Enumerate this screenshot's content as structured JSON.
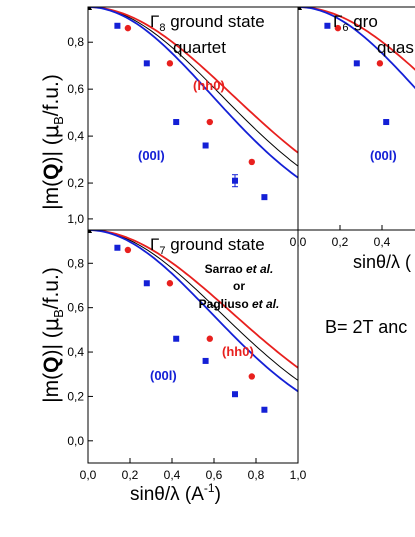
{
  "y_axis_label": {
    "pre": "|m(",
    "bold": "Q",
    "mid": ")|  (",
    "mu": "μ",
    "sub": "B",
    "post": "/f.u.)"
  },
  "x_axis_label": {
    "main": "sinθ/λ  (A",
    "sup": "-1",
    "close": ")"
  },
  "note": "B= 2T anc",
  "colors": {
    "red": "#e8201e",
    "blue": "#1420d6",
    "black": "#000000",
    "axis": "#000000"
  },
  "chart_data": [
    {
      "type": "scatter",
      "panel": "top-left",
      "title": {
        "gamma": "Γ",
        "sub": "8",
        "text": " ground state",
        "line2": "quartet"
      },
      "xlim": [
        0,
        1.0
      ],
      "ylim": [
        0,
        0.95
      ],
      "yticks": [
        "0,2",
        "0,4",
        "0,6",
        "0,8"
      ],
      "series": [
        {
          "name": "(hh0)",
          "color": "red",
          "points": [
            [
              0.0,
              0.95
            ],
            [
              0.19,
              0.86
            ],
            [
              0.39,
              0.71
            ],
            [
              0.58,
              0.46
            ],
            [
              0.78,
              0.29
            ]
          ]
        },
        {
          "name": "(00l)",
          "color": "blue",
          "points": [
            [
              0.0,
              0.95
            ],
            [
              0.14,
              0.87
            ],
            [
              0.28,
              0.71
            ],
            [
              0.42,
              0.46
            ],
            [
              0.56,
              0.36
            ],
            [
              0.7,
              0.21
            ],
            [
              0.84,
              0.14
            ]
          ],
          "error_bar_index": 5
        },
        {
          "name": "",
          "color": "black",
          "points": []
        }
      ]
    },
    {
      "type": "scatter",
      "panel": "top-right",
      "title": {
        "gamma": "Γ",
        "sub": "6",
        "text": " gro",
        "line2": "quas"
      },
      "xlim": [
        0,
        1.0
      ],
      "ylim": [
        0,
        0.95
      ],
      "xticks": [
        "0,0",
        "0,2",
        "0,4"
      ],
      "series": [
        {
          "name": "",
          "color": "red",
          "points": [
            [
              0.0,
              0.95
            ],
            [
              0.19,
              0.86
            ],
            [
              0.39,
              0.71
            ]
          ]
        },
        {
          "name": "(00l)",
          "color": "blue",
          "points": [
            [
              0.0,
              0.95
            ],
            [
              0.14,
              0.87
            ],
            [
              0.28,
              0.71
            ],
            [
              0.42,
              0.46
            ]
          ]
        }
      ],
      "x_label_partial": "sinθ/λ  ("
    },
    {
      "type": "scatter",
      "panel": "bottom-left",
      "title": {
        "gamma": "Γ",
        "sub": "7",
        "text": " ground state"
      },
      "annotation": [
        "Sarrao et al.",
        "or",
        "Pagliuso et al."
      ],
      "annotation_italic": "et al.",
      "xlim": [
        0,
        1.0
      ],
      "ylim": [
        -0.1,
        0.95
      ],
      "xticks": [
        "0,0",
        "0,2",
        "0,4",
        "0,6",
        "0,8",
        "1,0"
      ],
      "yticks": [
        "0,0",
        "0,2",
        "0,4",
        "0,6",
        "0,8",
        "1,0"
      ],
      "series": [
        {
          "name": "(hh0)",
          "color": "red",
          "points": [
            [
              0.0,
              0.95
            ],
            [
              0.19,
              0.86
            ],
            [
              0.39,
              0.71
            ],
            [
              0.58,
              0.46
            ],
            [
              0.78,
              0.29
            ]
          ]
        },
        {
          "name": "(00l)",
          "color": "blue",
          "points": [
            [
              0.0,
              0.95
            ],
            [
              0.14,
              0.87
            ],
            [
              0.28,
              0.71
            ],
            [
              0.42,
              0.46
            ],
            [
              0.56,
              0.36
            ],
            [
              0.7,
              0.21
            ],
            [
              0.84,
              0.14
            ]
          ]
        },
        {
          "name": "",
          "color": "black",
          "points": []
        }
      ]
    }
  ]
}
